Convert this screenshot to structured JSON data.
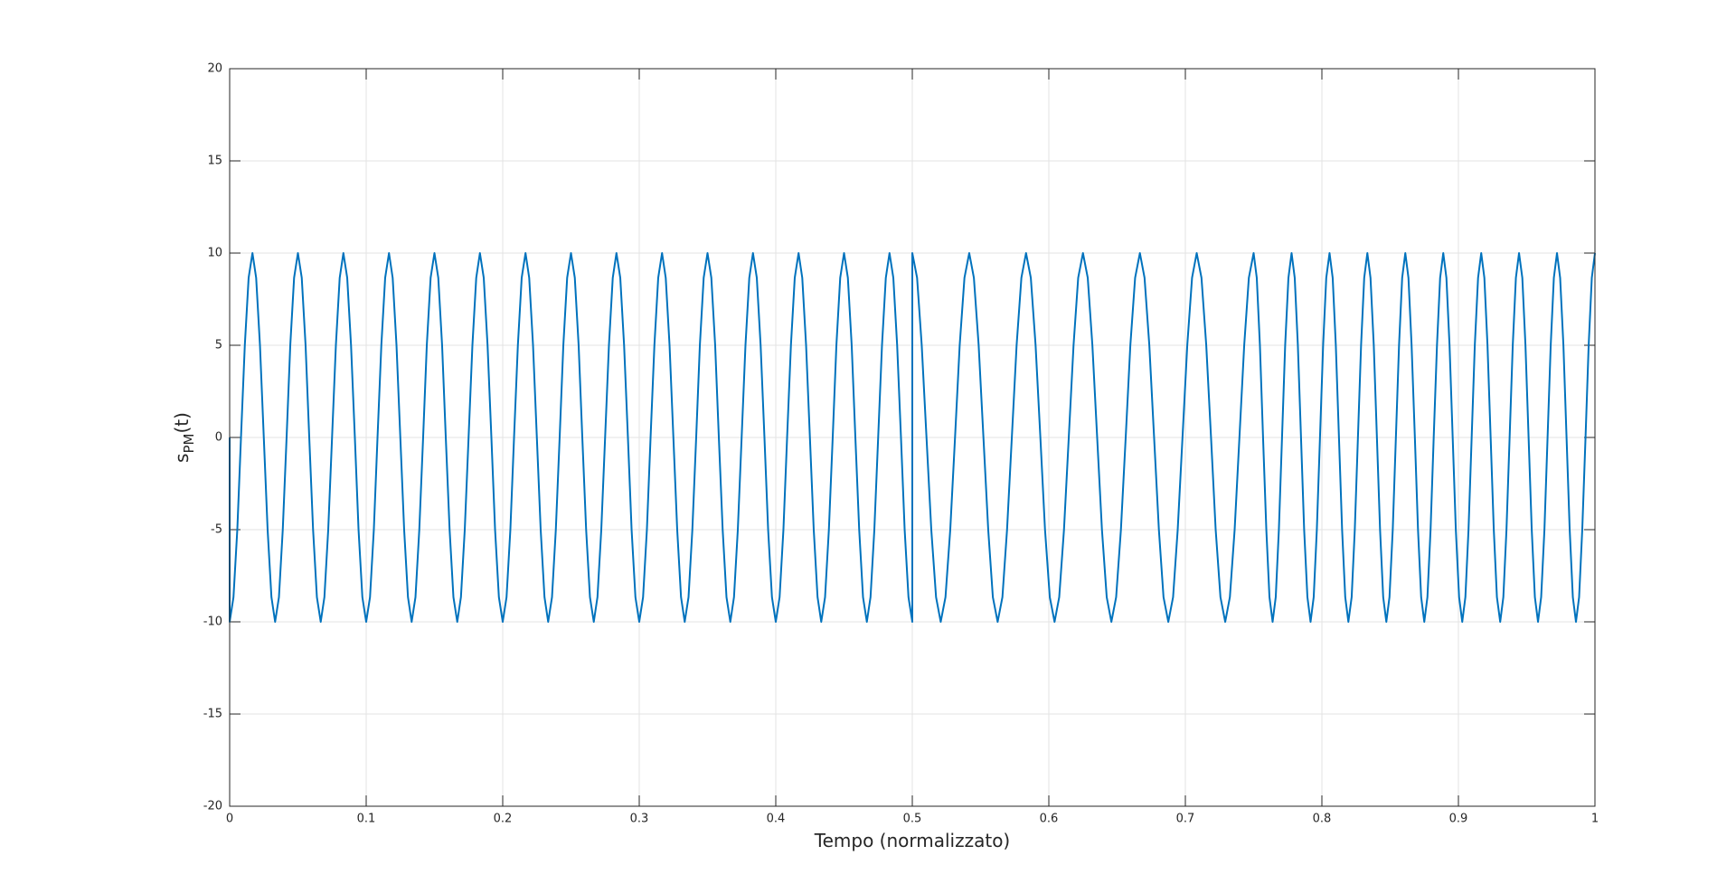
{
  "chart_data": {
    "type": "line",
    "xlabel": "Tempo (normalizzato)",
    "ylabel": {
      "base": "s",
      "sub": "PM",
      "rest": "(t)"
    },
    "xlim": [
      0,
      1
    ],
    "xticks": [
      0,
      0.1,
      0.2,
      0.3,
      0.4,
      0.5,
      0.6,
      0.7,
      0.8,
      0.9,
      1
    ],
    "ylim": [
      -20,
      20
    ],
    "yticks": [
      -20,
      -15,
      -10,
      -5,
      0,
      5,
      10,
      15,
      20
    ],
    "grid": true,
    "x": [
      0,
      0,
      0.0028,
      0.0056,
      0.0083,
      0.0111,
      0.0139,
      0.0167,
      0.0194,
      0.0222,
      0.025,
      0.0278,
      0.0306,
      0.0333,
      0.0361,
      0.0389,
      0.0417,
      0.0444,
      0.0472,
      0.05,
      0.0528,
      0.0556,
      0.0583,
      0.0611,
      0.0639,
      0.0667,
      0.0694,
      0.0722,
      0.075,
      0.0778,
      0.0806,
      0.0833,
      0.0861,
      0.0889,
      0.0917,
      0.0944,
      0.0972,
      0.1,
      0.1028,
      0.1056,
      0.1083,
      0.1111,
      0.1139,
      0.1167,
      0.1194,
      0.1222,
      0.125,
      0.1278,
      0.1306,
      0.1333,
      0.1361,
      0.1389,
      0.1417,
      0.1444,
      0.1472,
      0.15,
      0.1528,
      0.1556,
      0.1583,
      0.1611,
      0.1639,
      0.1667,
      0.1694,
      0.1722,
      0.175,
      0.1778,
      0.1806,
      0.1833,
      0.1861,
      0.1889,
      0.1917,
      0.1944,
      0.1972,
      0.2,
      0.2028,
      0.2056,
      0.2083,
      0.2111,
      0.2139,
      0.2167,
      0.2194,
      0.2222,
      0.225,
      0.2278,
      0.2306,
      0.2333,
      0.2361,
      0.2389,
      0.2417,
      0.2444,
      0.2472,
      0.25,
      0.2528,
      0.2556,
      0.2583,
      0.2611,
      0.2639,
      0.2667,
      0.2694,
      0.2722,
      0.275,
      0.2778,
      0.2806,
      0.2833,
      0.2861,
      0.2889,
      0.2917,
      0.2944,
      0.2972,
      0.3,
      0.3028,
      0.3056,
      0.3083,
      0.3111,
      0.3139,
      0.3167,
      0.3194,
      0.3222,
      0.325,
      0.3278,
      0.3306,
      0.3333,
      0.3361,
      0.3389,
      0.3417,
      0.3444,
      0.3472,
      0.35,
      0.3528,
      0.3556,
      0.3583,
      0.3611,
      0.3639,
      0.3667,
      0.3694,
      0.3722,
      0.375,
      0.3778,
      0.3806,
      0.3833,
      0.3861,
      0.3889,
      0.3917,
      0.3944,
      0.3972,
      0.4,
      0.4028,
      0.4056,
      0.4083,
      0.4111,
      0.4139,
      0.4167,
      0.4194,
      0.4222,
      0.425,
      0.4278,
      0.4306,
      0.4333,
      0.4361,
      0.4389,
      0.4417,
      0.4444,
      0.4472,
      0.45,
      0.4528,
      0.4556,
      0.4583,
      0.4611,
      0.4639,
      0.4667,
      0.4694,
      0.4722,
      0.475,
      0.4778,
      0.4806,
      0.4833,
      0.4861,
      0.4889,
      0.4917,
      0.4944,
      0.4972,
      0.5,
      0.5,
      0.5035,
      0.5069,
      0.5104,
      0.5139,
      0.5174,
      0.5208,
      0.5243,
      0.5278,
      0.5313,
      0.5347,
      0.5382,
      0.5417,
      0.5451,
      0.5486,
      0.5521,
      0.5556,
      0.559,
      0.5625,
      0.566,
      0.5694,
      0.5729,
      0.5764,
      0.5799,
      0.5833,
      0.5868,
      0.5903,
      0.5938,
      0.5972,
      0.6007,
      0.6042,
      0.6076,
      0.6111,
      0.6146,
      0.6181,
      0.6215,
      0.625,
      0.6285,
      0.6319,
      0.6354,
      0.6389,
      0.6424,
      0.6458,
      0.6493,
      0.6528,
      0.6563,
      0.6597,
      0.6632,
      0.6667,
      0.6701,
      0.6736,
      0.6771,
      0.6806,
      0.684,
      0.6875,
      0.691,
      0.6944,
      0.6979,
      0.7014,
      0.7049,
      0.7083,
      0.7118,
      0.7153,
      0.7188,
      0.7222,
      0.7257,
      0.7292,
      0.7326,
      0.7361,
      0.7396,
      0.7431,
      0.7465,
      0.75,
      0.7523,
      0.7546,
      0.7569,
      0.7593,
      0.7616,
      0.7639,
      0.7662,
      0.7685,
      0.7708,
      0.7731,
      0.7755,
      0.7778,
      0.7801,
      0.7824,
      0.7847,
      0.787,
      0.7894,
      0.7917,
      0.794,
      0.7963,
      0.7986,
      0.8009,
      0.8032,
      0.8056,
      0.8079,
      0.8102,
      0.8125,
      0.8148,
      0.8171,
      0.8194,
      0.8218,
      0.8241,
      0.8264,
      0.8287,
      0.831,
      0.8333,
      0.8356,
      0.838,
      0.8403,
      0.8426,
      0.8449,
      0.8472,
      0.8495,
      0.8519,
      0.8542,
      0.8565,
      0.8588,
      0.8611,
      0.8634,
      0.8657,
      0.8681,
      0.8704,
      0.8727,
      0.875,
      0.8773,
      0.8796,
      0.8819,
      0.8843,
      0.8866,
      0.8889,
      0.8912,
      0.8935,
      0.8958,
      0.8981,
      0.9005,
      0.9028,
      0.9051,
      0.9074,
      0.9097,
      0.912,
      0.9144,
      0.9167,
      0.919,
      0.9213,
      0.9236,
      0.9259,
      0.9282,
      0.9306,
      0.9329,
      0.9352,
      0.9375,
      0.9398,
      0.9421,
      0.9444,
      0.9468,
      0.9491,
      0.9514,
      0.9537,
      0.956,
      0.9583,
      0.9606,
      0.963,
      0.9653,
      0.9676,
      0.9699,
      0.9722,
      0.9745,
      0.9769,
      0.9792,
      0.9815,
      0.9838,
      0.9861,
      0.9884,
      0.9907,
      0.9931,
      0.9954,
      0.9977,
      1
    ],
    "series": [
      {
        "color": "#0072bd",
        "values": [
          0,
          -10,
          -8.66,
          -5,
          0,
          5,
          8.66,
          10,
          8.66,
          5,
          0,
          -5,
          -8.66,
          -10,
          -8.66,
          -5,
          0,
          5,
          8.66,
          10,
          8.66,
          5,
          0,
          -5,
          -8.66,
          -10,
          -8.66,
          -5,
          0,
          5,
          8.66,
          10,
          8.66,
          5,
          0,
          -5,
          -8.66,
          -10,
          -8.66,
          -5,
          0,
          5,
          8.66,
          10,
          8.66,
          5,
          0,
          -5,
          -8.66,
          -10,
          -8.66,
          -5,
          0,
          5,
          8.66,
          10,
          8.66,
          5,
          0,
          -5,
          -8.66,
          -10,
          -8.66,
          -5,
          0,
          5,
          8.66,
          10,
          8.66,
          5,
          0,
          -5,
          -8.66,
          -10,
          -8.66,
          -5,
          0,
          5,
          8.66,
          10,
          8.66,
          5,
          0,
          -5,
          -8.66,
          -10,
          -8.66,
          -5,
          0,
          5,
          8.66,
          10,
          8.66,
          5,
          0,
          -5,
          -8.66,
          -10,
          -8.66,
          -5,
          0,
          5,
          8.66,
          10,
          8.66,
          5,
          0,
          -5,
          -8.66,
          -10,
          -8.66,
          -5,
          0,
          5,
          8.66,
          10,
          8.66,
          5,
          0,
          -5,
          -8.66,
          -10,
          -8.66,
          -5,
          0,
          5,
          8.66,
          10,
          8.66,
          5,
          0,
          -5,
          -8.66,
          -10,
          -8.66,
          -5,
          0,
          5,
          8.66,
          10,
          8.66,
          5,
          0,
          -5,
          -8.66,
          -10,
          -8.66,
          -5,
          0,
          5,
          8.66,
          10,
          8.66,
          5,
          0,
          -5,
          -8.66,
          -10,
          -8.66,
          -5,
          0,
          5,
          8.66,
          10,
          8.66,
          5,
          0,
          -5,
          -8.66,
          -10,
          -8.66,
          -5,
          0,
          5,
          8.66,
          10,
          8.66,
          5,
          0,
          -5,
          -8.66,
          -10,
          10,
          8.66,
          5,
          0,
          -5,
          -8.66,
          -10,
          -8.66,
          -5,
          0,
          5,
          8.66,
          10,
          8.66,
          5,
          0,
          -5,
          -8.66,
          -10,
          -8.66,
          -5,
          0,
          5,
          8.66,
          10,
          8.66,
          5,
          0,
          -5,
          -8.66,
          -10,
          -8.66,
          -5,
          0,
          5,
          8.66,
          10,
          8.66,
          5,
          0,
          -5,
          -8.66,
          -10,
          -8.66,
          -5,
          0,
          5,
          8.66,
          10,
          8.66,
          5,
          0,
          -5,
          -8.66,
          -10,
          -8.66,
          -5,
          0,
          5,
          8.66,
          10,
          8.66,
          5,
          0,
          -5,
          -8.66,
          -10,
          -8.66,
          -5,
          0,
          5,
          8.66,
          10,
          8.66,
          5,
          0,
          -5,
          -8.66,
          -10,
          -8.66,
          -5,
          0,
          5,
          8.66,
          10,
          8.66,
          5,
          0,
          -5,
          -8.66,
          -10,
          -8.66,
          -5,
          0,
          5,
          8.66,
          10,
          8.66,
          5,
          0,
          -5,
          -8.66,
          -10,
          -8.66,
          -5,
          0,
          5,
          8.66,
          10,
          8.66,
          5,
          0,
          -5,
          -8.66,
          -10,
          -8.66,
          -5,
          0,
          5,
          8.66,
          10,
          8.66,
          5,
          0,
          -5,
          -8.66,
          -10,
          -8.66,
          -5,
          0,
          5,
          8.66,
          10,
          8.66,
          5,
          0,
          -5,
          -8.66,
          -10,
          -8.66,
          -5,
          0,
          5,
          8.66,
          10,
          8.66,
          5,
          0,
          -5,
          -8.66,
          -10,
          -8.66,
          -5,
          0,
          5,
          8.66,
          10,
          8.66,
          5,
          0,
          -5,
          -8.66,
          -10,
          -8.66,
          -5,
          0,
          5,
          8.66,
          10,
          8.66,
          5,
          0,
          -5,
          -8.66,
          -10,
          -8.66,
          -5,
          0,
          5,
          8.66,
          10
        ]
      }
    ]
  }
}
